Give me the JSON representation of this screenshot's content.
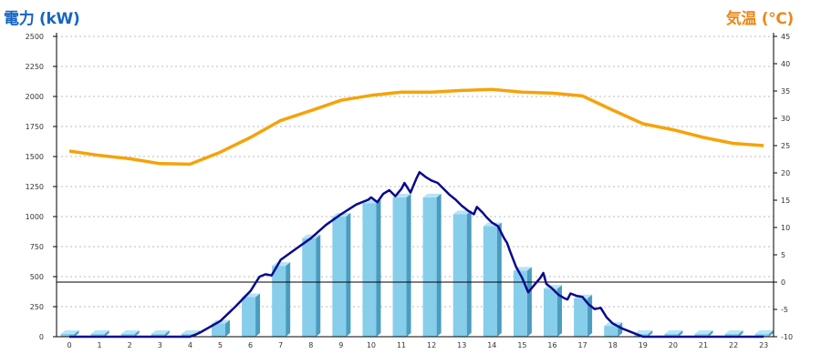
{
  "colors": {
    "power_title": "#1565c0",
    "temp_title": "#e8891c",
    "bar_front": "#87ceeb",
    "bar_side": "#4a9cc0",
    "bar_top": "#b8e4f5",
    "power_line": "#0a0a8c",
    "temp_line": "#f5a30a",
    "grid": "#bbbbbb",
    "axis": "#000000"
  },
  "chart_data": {
    "type": "bar+line",
    "title_left": "電力 (kW)",
    "title_right": "気温 (℃)",
    "grid": true,
    "categories": [
      "0",
      "1",
      "2",
      "3",
      "4",
      "5",
      "6",
      "7",
      "8",
      "9",
      "10",
      "11",
      "12",
      "13",
      "14",
      "15",
      "16",
      "17",
      "18",
      "19",
      "20",
      "21",
      "22",
      "23"
    ],
    "y_left": {
      "range": [
        0,
        2500
      ],
      "ticks": [
        "0",
        "250",
        "500",
        "750",
        "1000",
        "1250",
        "1500",
        "1750",
        "2000",
        "2250",
        "2500"
      ]
    },
    "y_right": {
      "range": [
        -10,
        45
      ],
      "ticks": [
        "-10",
        "-5",
        "0",
        "5",
        "10",
        "15",
        "20",
        "25",
        "30",
        "35",
        "40",
        "45"
      ]
    },
    "reference_line_temp": 0,
    "bars": {
      "axis": "left",
      "values": [
        0,
        0,
        0,
        0,
        0,
        110,
        330,
        590,
        820,
        1000,
        1110,
        1160,
        1160,
        1020,
        920,
        550,
        400,
        320,
        90,
        0,
        0,
        0,
        0,
        0
      ]
    },
    "power_line": {
      "axis": "left",
      "x": [
        0,
        1,
        2,
        3,
        4,
        4.3,
        5,
        5.5,
        6,
        6.3,
        6.5,
        6.7,
        7,
        7.5,
        8,
        8.5,
        9,
        9.5,
        9.9,
        10,
        10.2,
        10.4,
        10.6,
        10.8,
        11,
        11.1,
        11.3,
        11.5,
        11.6,
        11.8,
        12,
        12.2,
        12.4,
        12.6,
        12.8,
        13,
        13.2,
        13.4,
        13.5,
        13.7,
        13.8,
        14,
        14.2,
        14.4,
        14.5,
        14.6,
        14.8,
        15,
        15.2,
        15.4,
        15.6,
        15.7,
        15.8,
        16,
        16.2,
        16.4,
        16.5,
        16.6,
        16.8,
        17,
        17.2,
        17.4,
        17.6,
        17.8,
        18,
        18.3,
        19,
        20,
        21,
        22,
        23
      ],
      "y": [
        0,
        0,
        0,
        0,
        0,
        30,
        130,
        250,
        380,
        500,
        520,
        510,
        640,
        730,
        820,
        930,
        1020,
        1100,
        1140,
        1160,
        1120,
        1190,
        1220,
        1170,
        1230,
        1280,
        1200,
        1320,
        1370,
        1330,
        1300,
        1280,
        1230,
        1180,
        1140,
        1090,
        1050,
        1020,
        1080,
        1030,
        1000,
        950,
        920,
        820,
        780,
        710,
        580,
        490,
        370,
        430,
        490,
        530,
        440,
        400,
        350,
        320,
        310,
        360,
        340,
        330,
        270,
        230,
        240,
        160,
        110,
        70,
        0,
        0,
        0,
        0,
        0
      ]
    },
    "temp_line": {
      "axis": "right",
      "x": [
        0,
        1,
        2,
        3,
        4,
        5,
        6,
        7,
        8,
        9,
        10,
        11,
        12,
        13,
        14,
        15,
        16,
        17,
        18,
        19,
        20,
        21,
        22,
        23
      ],
      "y": [
        24,
        23.2,
        22.6,
        21.7,
        21.6,
        23.8,
        26.5,
        29.6,
        31.4,
        33.3,
        34.2,
        34.8,
        34.8,
        35.1,
        35.3,
        34.8,
        34.6,
        34.1,
        31.5,
        29,
        27.9,
        26.5,
        25.4,
        25
      ]
    }
  }
}
